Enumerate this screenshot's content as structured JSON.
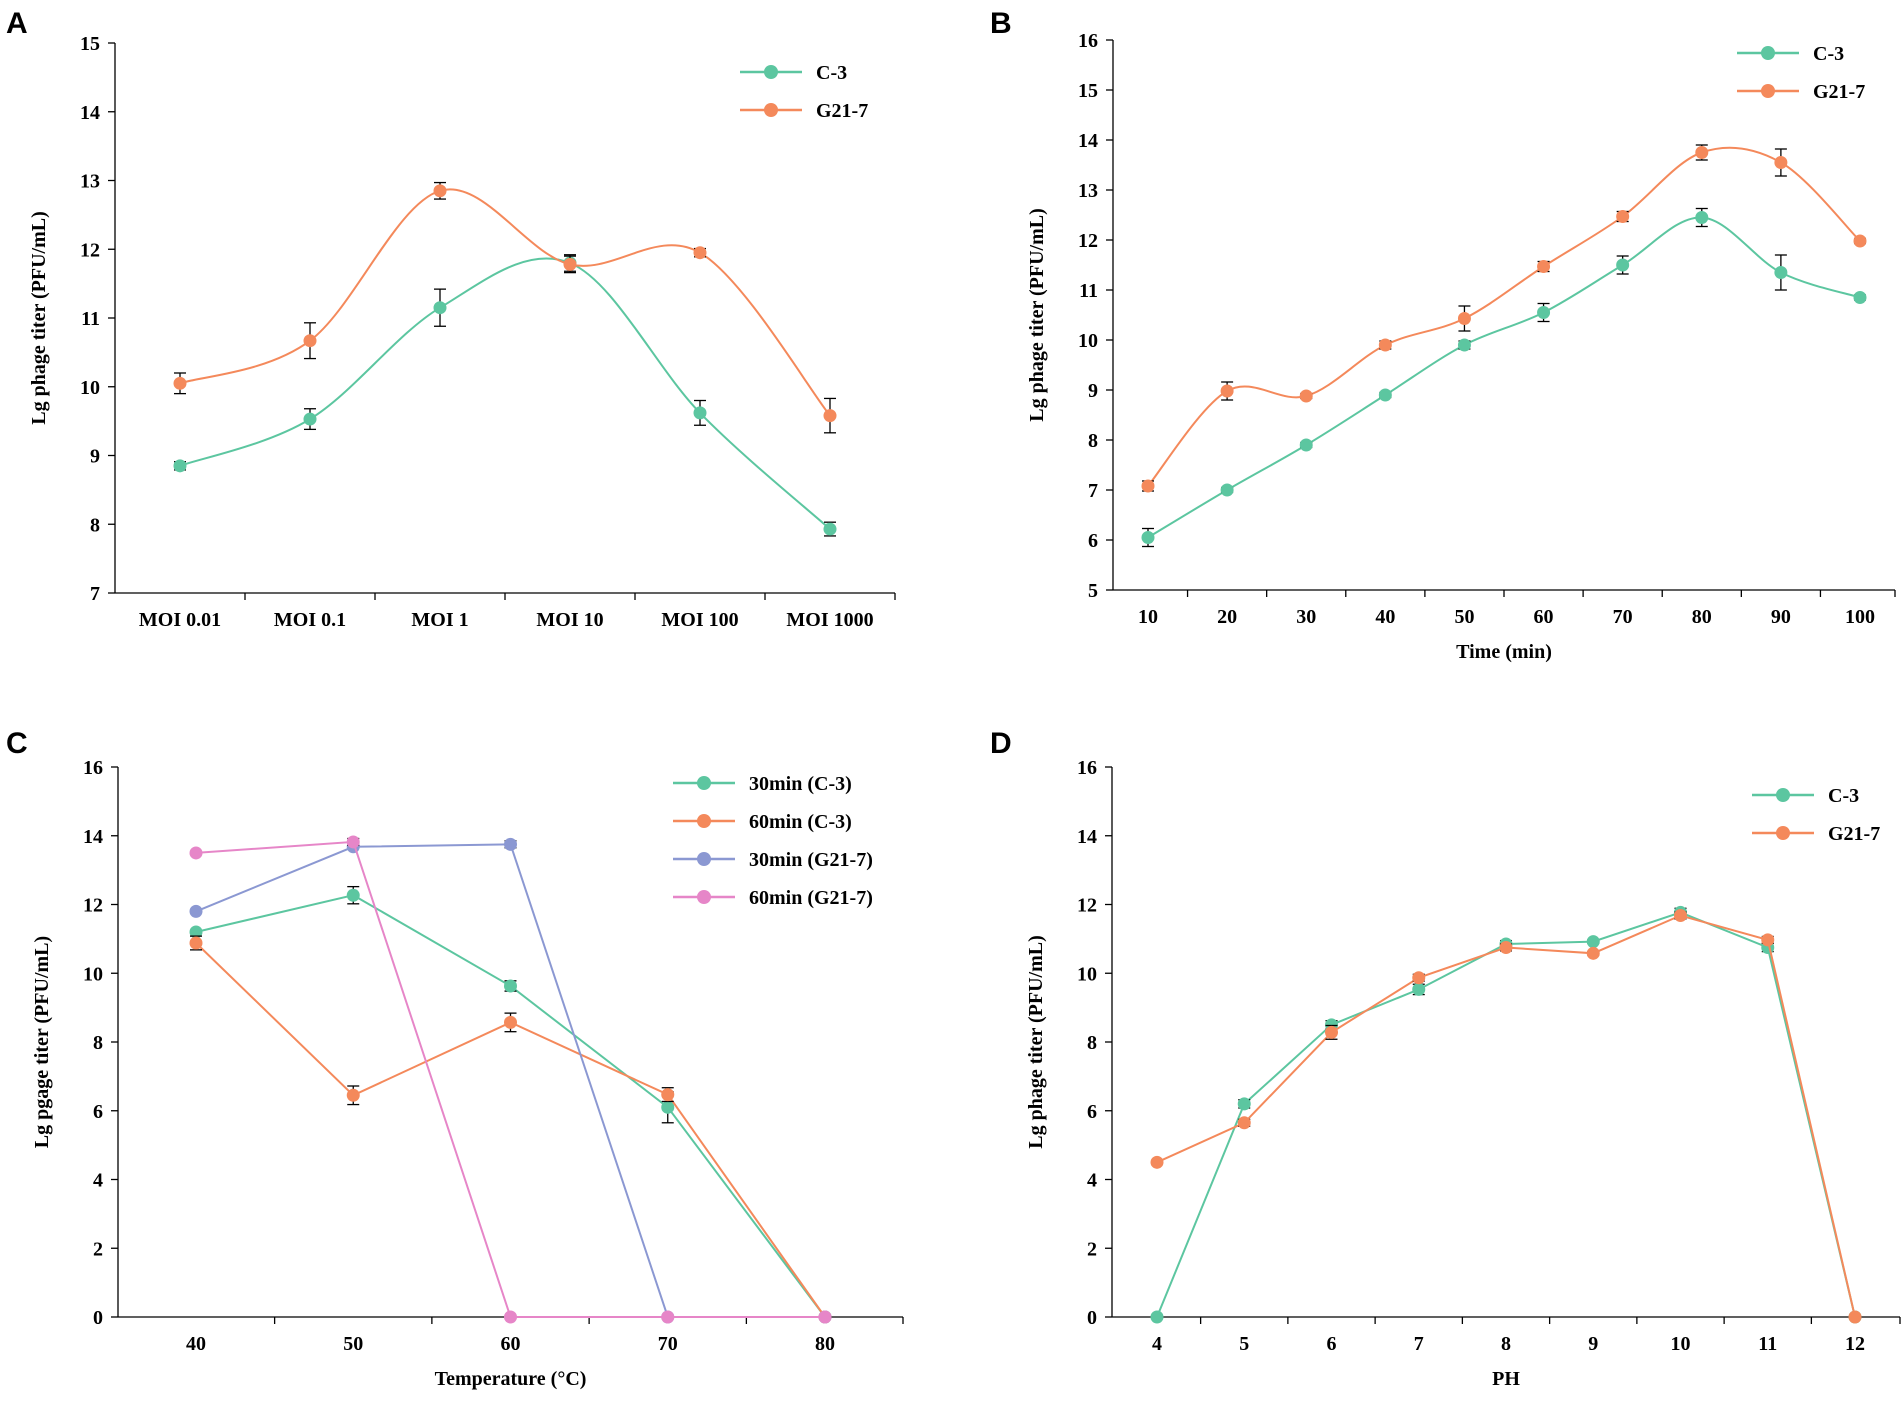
{
  "colors": {
    "teal": "#5cc6a0",
    "orange": "#f4895b",
    "blue": "#8b98d2",
    "pink": "#e686c8"
  },
  "chart_data": [
    {
      "panel": "A",
      "type": "line",
      "smooth": true,
      "xlabel": "",
      "ylabel": "Lg phage titer (PFU/mL)",
      "ylim": [
        7,
        15
      ],
      "yticks": [
        7,
        8,
        9,
        10,
        11,
        12,
        13,
        14,
        15
      ],
      "categories": [
        "MOI 0.01",
        "MOI 0.1",
        "MOI 1",
        "MOI 10",
        "MOI 100",
        "MOI 1000"
      ],
      "legend_position": "top-right",
      "series": [
        {
          "name": "C-3",
          "color": "#5cc6a0",
          "values": [
            8.85,
            9.53,
            11.15,
            11.8,
            9.62,
            7.93
          ],
          "errors": [
            0.06,
            0.15,
            0.27,
            0.12,
            0.18,
            0.1
          ]
        },
        {
          "name": "G21-7",
          "color": "#f4895b",
          "values": [
            10.05,
            10.67,
            12.85,
            11.78,
            11.95,
            9.58
          ],
          "errors": [
            0.15,
            0.26,
            0.12,
            0.12,
            0.06,
            0.25
          ]
        }
      ]
    },
    {
      "panel": "B",
      "type": "line",
      "smooth": true,
      "xlabel": "Time (min)",
      "ylabel": "Lg phage titer (PFU/mL)",
      "ylim": [
        5,
        16
      ],
      "yticks": [
        5,
        6,
        7,
        8,
        9,
        10,
        11,
        12,
        13,
        14,
        15,
        16
      ],
      "categories": [
        "10",
        "20",
        "30",
        "40",
        "50",
        "60",
        "70",
        "80",
        "90",
        "100"
      ],
      "legend_position": "top-right",
      "series": [
        {
          "name": "C-3",
          "color": "#5cc6a0",
          "values": [
            6.05,
            7.0,
            7.9,
            8.9,
            9.9,
            10.55,
            11.5,
            12.45,
            11.35,
            10.85
          ],
          "errors": [
            0.18,
            0.05,
            0.05,
            0.05,
            0.08,
            0.18,
            0.18,
            0.18,
            0.35,
            0.05
          ]
        },
        {
          "name": "G21-7",
          "color": "#f4895b",
          "values": [
            7.08,
            8.98,
            8.88,
            9.9,
            10.43,
            11.47,
            12.47,
            13.75,
            13.55,
            11.98
          ],
          "errors": [
            0.1,
            0.18,
            0.05,
            0.08,
            0.25,
            0.1,
            0.1,
            0.15,
            0.27,
            0.05
          ]
        }
      ]
    },
    {
      "panel": "C",
      "type": "line",
      "smooth": false,
      "xlabel": "Temperature (°C)",
      "ylabel": "Lg pgage titer (PFU/mL)",
      "ylim": [
        0,
        16
      ],
      "yticks": [
        0,
        2,
        4,
        6,
        8,
        10,
        12,
        14,
        16
      ],
      "categories": [
        "40",
        "50",
        "60",
        "70",
        "80"
      ],
      "legend_position": "top-right",
      "series": [
        {
          "name": "30min (C-3)",
          "color": "#5cc6a0",
          "values": [
            11.2,
            12.27,
            9.63,
            6.1,
            0
          ],
          "errors": [
            0,
            0.25,
            0.15,
            0.45,
            0
          ]
        },
        {
          "name": "60min (C-3)",
          "color": "#f4895b",
          "values": [
            10.88,
            6.45,
            8.57,
            6.47,
            0
          ],
          "errors": [
            0.2,
            0.27,
            0.27,
            0.2,
            0
          ]
        },
        {
          "name": "30min (G21-7)",
          "color": "#8b98d2",
          "values": [
            11.8,
            13.68,
            13.75,
            0,
            0
          ],
          "errors": [
            0,
            0,
            0.1,
            0,
            0
          ]
        },
        {
          "name": "60min (G21-7)",
          "color": "#e686c8",
          "values": [
            13.5,
            13.82,
            0,
            0,
            0
          ],
          "errors": [
            0,
            0.1,
            0,
            0,
            0
          ]
        }
      ]
    },
    {
      "panel": "D",
      "type": "line",
      "smooth": false,
      "xlabel": "PH",
      "ylabel": "Lg phage titer (PFU/mL)",
      "ylim": [
        0,
        16
      ],
      "yticks": [
        0,
        2,
        4,
        6,
        8,
        10,
        12,
        14,
        16
      ],
      "categories": [
        "4",
        "5",
        "6",
        "7",
        "8",
        "9",
        "10",
        "11",
        "12"
      ],
      "legend_position": "top-right",
      "series": [
        {
          "name": "C-3",
          "color": "#5cc6a0",
          "values": [
            0,
            6.2,
            8.5,
            9.53,
            10.85,
            10.92,
            11.77,
            10.75,
            0
          ],
          "errors": [
            0,
            0.12,
            0.12,
            0.15,
            0.1,
            0.05,
            0.12,
            0.12,
            0
          ]
        },
        {
          "name": "G21-7",
          "color": "#f4895b",
          "values": [
            4.5,
            5.65,
            8.28,
            9.87,
            10.75,
            10.58,
            11.68,
            10.97,
            0
          ],
          "errors": [
            0,
            0.1,
            0.2,
            0.1,
            0.1,
            0.05,
            0.1,
            0.1,
            0
          ]
        }
      ]
    }
  ]
}
